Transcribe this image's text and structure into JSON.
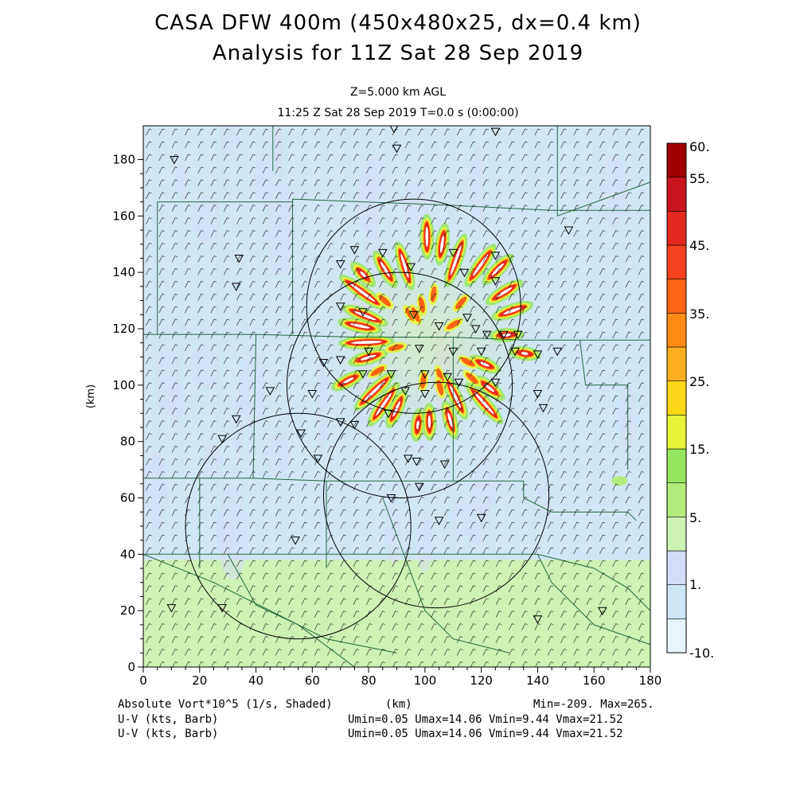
{
  "header": {
    "title_line1": "CASA DFW 400m (450x480x25, dx=0.4 km)",
    "title_line2": "Analysis for 11Z Sat 28 Sep 2019",
    "level": "Z=5.000 km AGL",
    "time": "11:25 Z Sat 28 Sep 2019    T=0.0 s (0:00:00)"
  },
  "footer": {
    "field_label": "Absolute Vort*10^5 (1/s, Shaded)",
    "xunit": "(km)",
    "minmax": "Min=-209. Max=265.",
    "barb_label_1": "U-V (kts, Barb)",
    "barb_label_2": "U-V (kts, Barb)",
    "uv_stats_1": "Umin=0.05 Umax=14.06 Vmin=9.44 Vmax=21.52",
    "uv_stats_2": "Umin=0.05 Umax=14.06 Vmin=9.44 Vmax=21.52"
  },
  "colorbar": {
    "labels": [
      "60.",
      "55.",
      "45.",
      "35.",
      "25.",
      "15.",
      "5.",
      "1.",
      "-10."
    ],
    "colors": [
      "#e8f6fb",
      "#cfe6f5",
      "#d5dcf6",
      "#ccf2b4",
      "#b2ec7c",
      "#96e560",
      "#e6f53a",
      "#ffd719",
      "#ffb01e",
      "#ff8a14",
      "#ff6414",
      "#f5411e",
      "#e4281e",
      "#c8141e",
      "#a00000"
    ]
  },
  "chart_data": {
    "type": "heatmap",
    "title": "CASA DFW 400m (450x480x25, dx=0.4 km)",
    "subtitle": "Analysis for 11Z Sat 28 Sep 2019",
    "xlabel": "(km)",
    "ylabel": "(km)",
    "xlim": [
      0,
      180
    ],
    "ylim": [
      0,
      192
    ],
    "x_ticks": [
      0,
      20,
      40,
      60,
      80,
      100,
      120,
      140,
      160,
      180
    ],
    "y_ticks": [
      0,
      20,
      40,
      60,
      80,
      100,
      120,
      140,
      160,
      180
    ],
    "field": "Absolute Vort*10^5 (1/s, Shaded)",
    "min": -209,
    "max": 265,
    "vectors": "U-V (kts, Barb)",
    "umin": 0.05,
    "umax": 14.06,
    "vmin": 9.44,
    "vmax": 21.52,
    "rings": [
      {
        "cx": 96,
        "cy": 128,
        "r": 38
      },
      {
        "cx": 91,
        "cy": 100,
        "r": 40
      },
      {
        "cx": 104,
        "cy": 61,
        "r": 40
      },
      {
        "cx": 55,
        "cy": 50,
        "r": 40
      }
    ],
    "radar_star_center": [
      101,
      116
    ],
    "radar_star_radius": 39,
    "green_band_ymax": 38,
    "markers": [
      [
        89,
        191
      ],
      [
        125,
        190
      ],
      [
        90,
        184
      ],
      [
        11,
        180
      ],
      [
        75,
        148
      ],
      [
        85,
        147
      ],
      [
        110,
        147
      ],
      [
        125,
        146
      ],
      [
        34,
        145
      ],
      [
        70,
        143
      ],
      [
        95,
        142
      ],
      [
        114,
        140
      ],
      [
        125,
        137
      ],
      [
        33,
        135
      ],
      [
        70,
        128
      ],
      [
        78,
        126
      ],
      [
        96,
        125
      ],
      [
        115,
        124
      ],
      [
        105,
        121
      ],
      [
        118,
        120
      ],
      [
        122,
        118
      ],
      [
        128,
        118
      ],
      [
        133,
        118
      ],
      [
        132,
        112
      ],
      [
        140,
        111
      ],
      [
        147,
        112
      ],
      [
        98,
        113
      ],
      [
        110,
        112
      ],
      [
        120,
        112
      ],
      [
        80,
        112
      ],
      [
        70,
        109
      ],
      [
        64,
        108
      ],
      [
        78,
        104
      ],
      [
        88,
        104
      ],
      [
        100,
        104
      ],
      [
        108,
        103
      ],
      [
        112,
        101
      ],
      [
        125,
        101
      ],
      [
        45,
        98
      ],
      [
        60,
        97
      ],
      [
        93,
        98
      ],
      [
        100,
        97
      ],
      [
        140,
        97
      ],
      [
        142,
        92
      ],
      [
        33,
        88
      ],
      [
        70,
        87
      ],
      [
        75,
        86
      ],
      [
        87,
        90
      ],
      [
        28,
        81
      ],
      [
        56,
        83
      ],
      [
        62,
        74
      ],
      [
        94,
        74
      ],
      [
        97,
        73
      ],
      [
        107,
        72
      ],
      [
        98,
        64
      ],
      [
        88,
        60
      ],
      [
        105,
        52
      ],
      [
        120,
        53
      ],
      [
        54,
        45
      ],
      [
        10,
        21
      ],
      [
        28,
        21
      ],
      [
        140,
        17
      ],
      [
        163,
        20
      ],
      [
        151,
        155
      ]
    ]
  }
}
